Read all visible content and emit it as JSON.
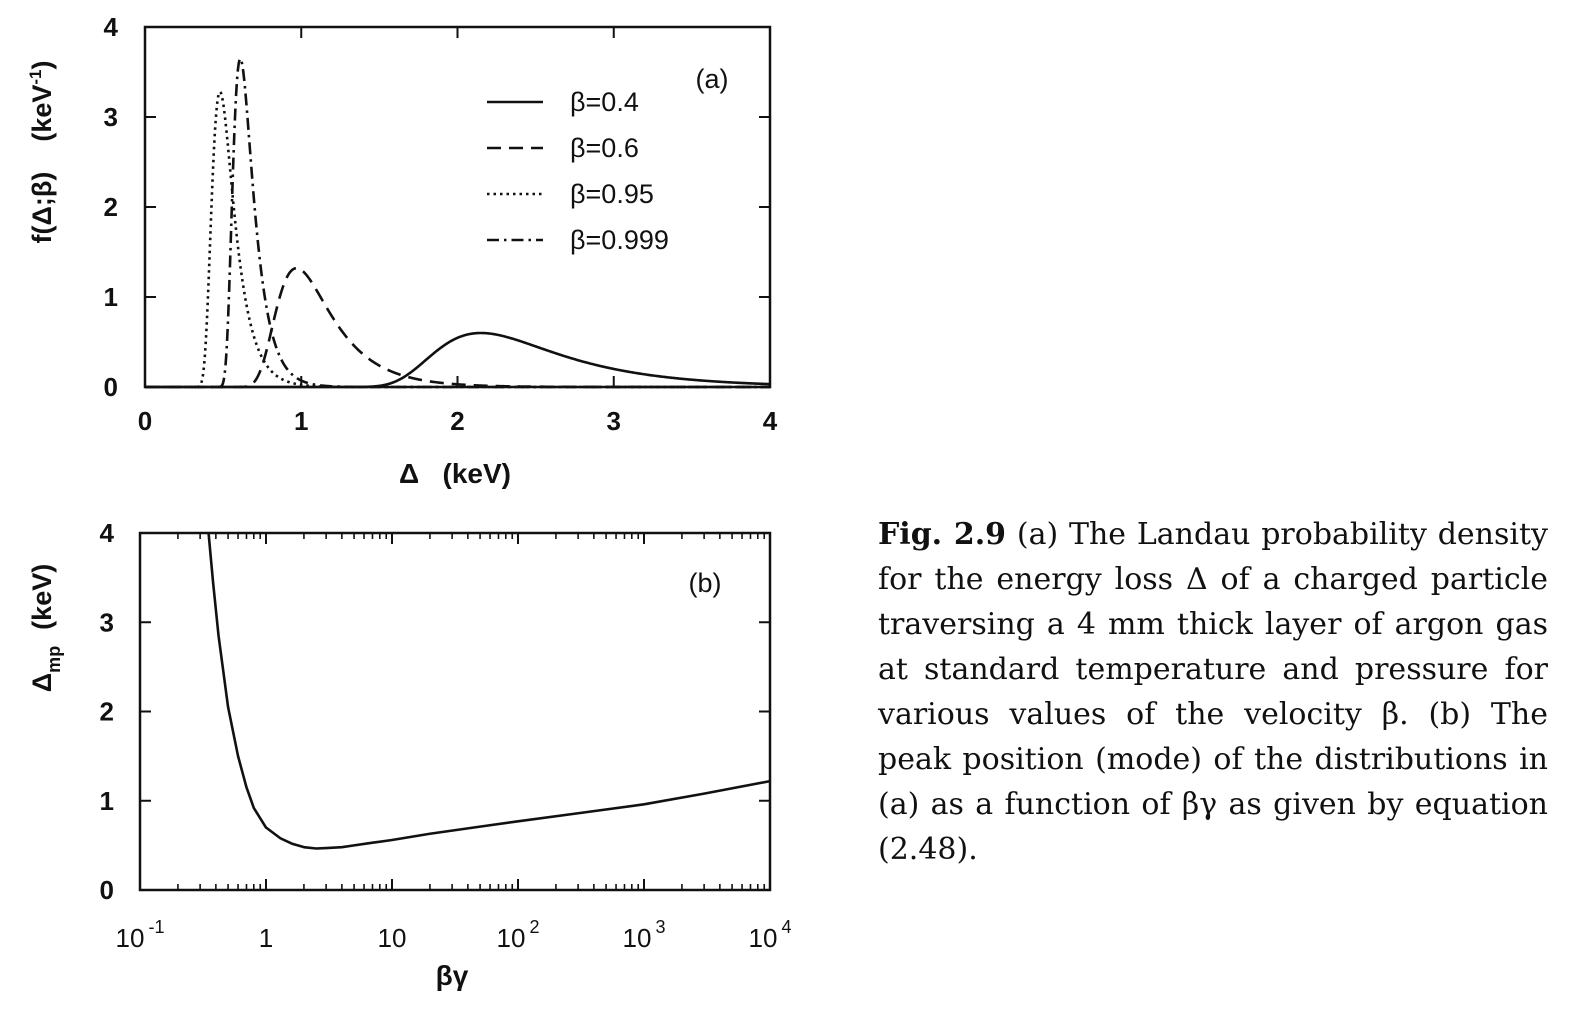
{
  "chart_data": [
    {
      "type": "line",
      "panel_label": "(a)",
      "xlabel": "Δ   (keV)",
      "ylabel": "f(Δ;β)    (keV",
      "ylabel_sup": "-1",
      "ylabel_close": ")",
      "xlim": [
        0,
        4
      ],
      "ylim": [
        0,
        4
      ],
      "x_ticks": [
        "0",
        "1",
        "2",
        "3",
        "4"
      ],
      "y_ticks": [
        "0",
        "1",
        "2",
        "3",
        "4"
      ],
      "grid": false,
      "legend_position": "top-right",
      "series": [
        {
          "name": "β=0.4",
          "style": "solid",
          "mode": 2.15,
          "peak": 0.6,
          "width": 0.27,
          "min_x": 1.2
        },
        {
          "name": "β=0.6",
          "style": "dashed",
          "mode": 0.97,
          "peak": 1.32,
          "width": 0.12,
          "min_x": 0.6
        },
        {
          "name": "β=0.95",
          "style": "dotted",
          "mode": 0.48,
          "peak": 3.28,
          "width": 0.048,
          "min_x": 0.3
        },
        {
          "name": "β=0.999",
          "style": "dashdot",
          "mode": 0.61,
          "peak": 3.65,
          "width": 0.044,
          "min_x": 0.4
        }
      ]
    },
    {
      "type": "line",
      "panel_label": "(b)",
      "xlabel": "βγ",
      "ylabel": "Δ",
      "ylabel_sub": "mp",
      "ylabel_unit": "(keV)",
      "x_scale": "log",
      "xlim": [
        0.1,
        10000
      ],
      "ylim": [
        0,
        4
      ],
      "x_ticks": [
        {
          "base": "10",
          "exp": "-1"
        },
        {
          "base": "1",
          "exp": ""
        },
        {
          "base": "10",
          "exp": ""
        },
        {
          "base": "10",
          "exp": "2"
        },
        {
          "base": "10",
          "exp": "3"
        },
        {
          "base": "10",
          "exp": "4"
        }
      ],
      "y_ticks": [
        "0",
        "1",
        "2",
        "3",
        "4"
      ],
      "grid": false,
      "series": [
        {
          "style": "solid",
          "x": [
            0.35,
            0.38,
            0.42,
            0.5,
            0.6,
            0.7,
            0.8,
            1.0,
            1.3,
            1.6,
            2.0,
            2.5,
            3.0,
            4.0,
            5.0,
            7.0,
            10,
            20,
            50,
            100,
            300,
            1000,
            3000,
            10000
          ],
          "y": [
            4.0,
            3.45,
            2.85,
            2.05,
            1.5,
            1.15,
            0.92,
            0.7,
            0.58,
            0.52,
            0.48,
            0.465,
            0.47,
            0.48,
            0.5,
            0.53,
            0.56,
            0.63,
            0.71,
            0.77,
            0.86,
            0.96,
            1.08,
            1.22
          ]
        }
      ]
    }
  ],
  "caption": {
    "label": "Fig. 2.9",
    "text": " (a) The Landau probability density for the energy loss Δ of a charged particle traversing a 4 mm thick layer of argon gas at standard temperature and pressure for various values of the velocity β. (b) The peak position (mode) of the distributions in (a) as a function of βγ as given by equation (2.48)."
  }
}
